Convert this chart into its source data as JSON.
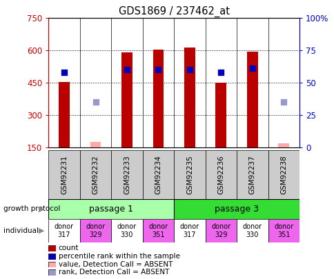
{
  "title": "GDS1869 / 237462_at",
  "samples": [
    "GSM92231",
    "GSM92232",
    "GSM92233",
    "GSM92234",
    "GSM92235",
    "GSM92236",
    "GSM92237",
    "GSM92238"
  ],
  "count_values": [
    455,
    null,
    590,
    605,
    615,
    450,
    595,
    null
  ],
  "count_absent": [
    null,
    175,
    null,
    null,
    null,
    null,
    null,
    170
  ],
  "percentile_values": [
    58,
    null,
    60,
    60,
    60,
    58,
    61,
    null
  ],
  "percentile_absent": [
    null,
    35,
    null,
    null,
    null,
    null,
    null,
    35
  ],
  "ylim_left": [
    150,
    750
  ],
  "ylim_right": [
    0,
    100
  ],
  "yticks_left": [
    150,
    300,
    450,
    600,
    750
  ],
  "ytick_labels_left": [
    "150",
    "300",
    "450",
    "600",
    "750"
  ],
  "yticks_right": [
    0,
    25,
    50,
    75,
    100
  ],
  "ytick_labels_right": [
    "0",
    "25",
    "50",
    "75",
    "100%"
  ],
  "growth_protocol_groups": [
    {
      "label": "passage 1",
      "indices": [
        0,
        1,
        2,
        3
      ],
      "color": "#aaffaa"
    },
    {
      "label": "passage 3",
      "indices": [
        4,
        5,
        6,
        7
      ],
      "color": "#33dd33"
    }
  ],
  "individuals": [
    {
      "label": "donor\n317",
      "color": "#ffffff"
    },
    {
      "label": "donor\n329",
      "color": "#ee66ee"
    },
    {
      "label": "donor\n330",
      "color": "#ffffff"
    },
    {
      "label": "donor\n351",
      "color": "#ee66ee"
    },
    {
      "label": "donor\n317",
      "color": "#ffffff"
    },
    {
      "label": "donor\n329",
      "color": "#ee66ee"
    },
    {
      "label": "donor\n330",
      "color": "#ffffff"
    },
    {
      "label": "donor\n351",
      "color": "#ee66ee"
    }
  ],
  "bar_color": "#bb0000",
  "absent_bar_color": "#ffaaaa",
  "percentile_color": "#0000bb",
  "percentile_absent_color": "#9999cc",
  "bar_width": 0.35,
  "left_tick_color": "#cc0000",
  "right_tick_color": "#0000cc",
  "legend_items": [
    {
      "color": "#bb0000",
      "label": "count"
    },
    {
      "color": "#0000bb",
      "label": "percentile rank within the sample"
    },
    {
      "color": "#ffaaaa",
      "label": "value, Detection Call = ABSENT"
    },
    {
      "color": "#9999cc",
      "label": "rank, Detection Call = ABSENT"
    }
  ],
  "sample_box_color": "#cccccc",
  "grid_color": "black",
  "grid_linestyle": "dotted"
}
